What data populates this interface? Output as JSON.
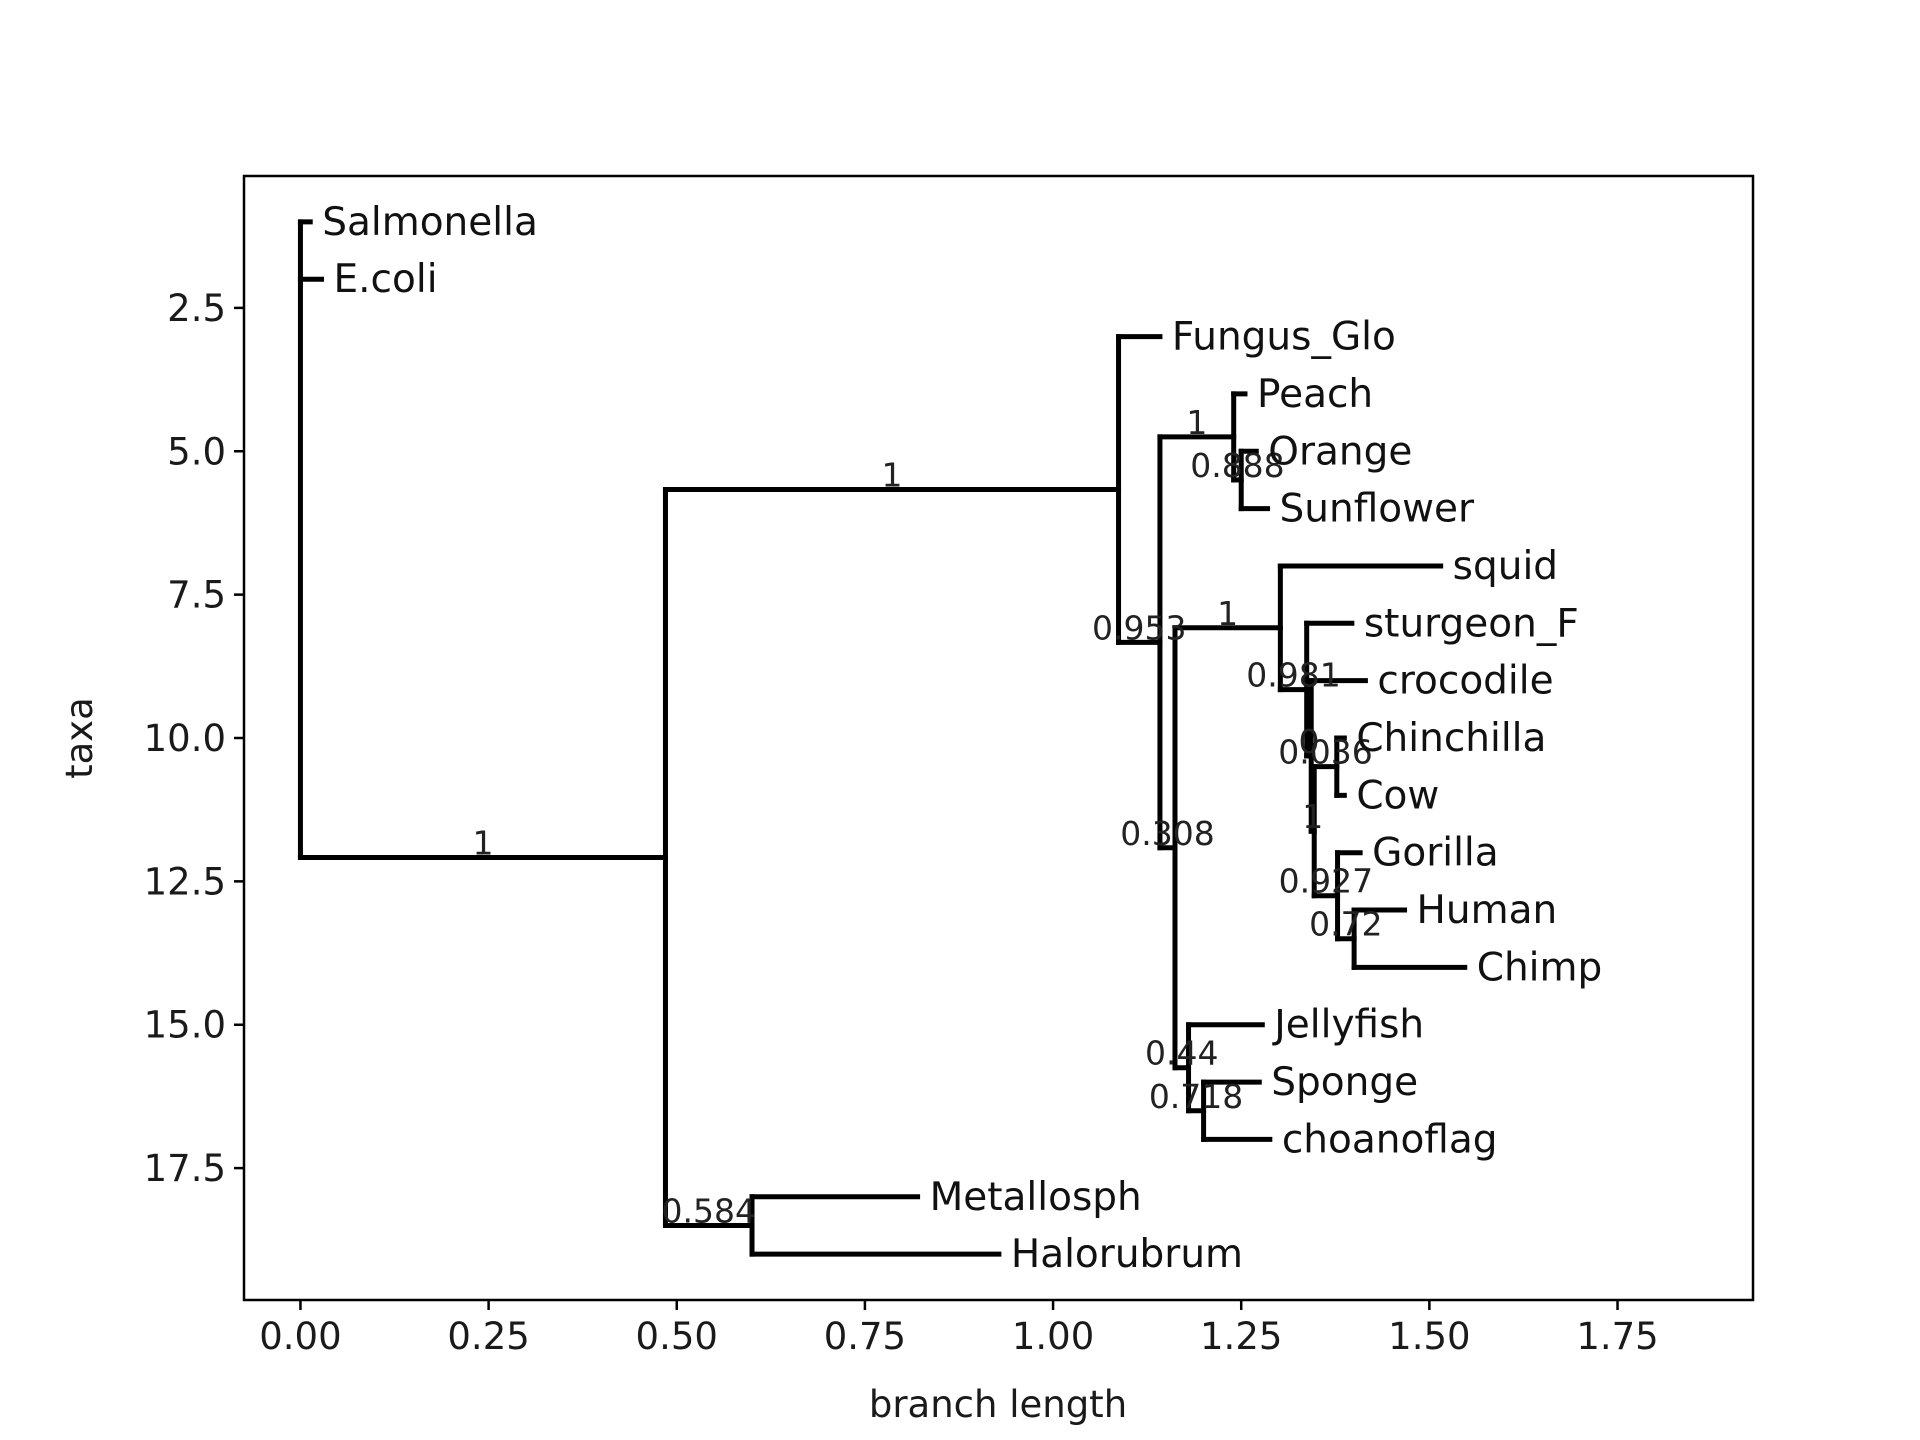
{
  "chart_data": {
    "type": "tree",
    "xlabel": "branch length",
    "ylabel": "taxa",
    "xlim": [
      -0.075,
      1.93
    ],
    "ylim": [
      19.8,
      0.2
    ],
    "x_ticks": [
      {
        "value": 0.0,
        "label": "0.00"
      },
      {
        "value": 0.25,
        "label": "0.25"
      },
      {
        "value": 0.5,
        "label": "0.50"
      },
      {
        "value": 0.75,
        "label": "0.75"
      },
      {
        "value": 1.0,
        "label": "1.00"
      },
      {
        "value": 1.25,
        "label": "1.25"
      },
      {
        "value": 1.5,
        "label": "1.50"
      },
      {
        "value": 1.75,
        "label": "1.75"
      }
    ],
    "y_ticks": [
      {
        "value": 2.5,
        "label": "2.5"
      },
      {
        "value": 5.0,
        "label": "5.0"
      },
      {
        "value": 7.5,
        "label": "7.5"
      },
      {
        "value": 10.0,
        "label": "10.0"
      },
      {
        "value": 12.5,
        "label": "12.5"
      },
      {
        "value": 15.0,
        "label": "15.0"
      },
      {
        "value": 17.5,
        "label": "17.5"
      }
    ],
    "leaves": [
      {
        "name": "Salmonella",
        "x": 0.013,
        "y": 1
      },
      {
        "name": "E.coli",
        "x": 0.028,
        "y": 2
      },
      {
        "name": "Fungus_Glo",
        "x": 1.142,
        "y": 3
      },
      {
        "name": "Peach",
        "x": 1.255,
        "y": 4
      },
      {
        "name": "Orange",
        "x": 1.27,
        "y": 5
      },
      {
        "name": "Sunflower",
        "x": 1.285,
        "y": 6
      },
      {
        "name": "squid",
        "x": 1.515,
        "y": 7
      },
      {
        "name": "sturgeon_F",
        "x": 1.397,
        "y": 8
      },
      {
        "name": "crocodile",
        "x": 1.415,
        "y": 9
      },
      {
        "name": "Chinchilla",
        "x": 1.387,
        "y": 10
      },
      {
        "name": "Cow",
        "x": 1.387,
        "y": 11
      },
      {
        "name": "Gorilla",
        "x": 1.408,
        "y": 12
      },
      {
        "name": "Human",
        "x": 1.467,
        "y": 13
      },
      {
        "name": "Chimp",
        "x": 1.547,
        "y": 14
      },
      {
        "name": "Jellyfish",
        "x": 1.278,
        "y": 15
      },
      {
        "name": "Sponge",
        "x": 1.274,
        "y": 16
      },
      {
        "name": "choanoflag",
        "x": 1.288,
        "y": 17
      },
      {
        "name": "Metallosph",
        "x": 0.82,
        "y": 18
      },
      {
        "name": "Halorubrum",
        "x": 0.928,
        "y": 19
      }
    ],
    "nodes": [
      {
        "id": "root",
        "x": 0.0,
        "children": [
          "Salmonella",
          "E.coli",
          "n_big"
        ]
      },
      {
        "id": "n_big",
        "x": 0.485,
        "support": "1",
        "children": [
          "n_euk",
          "n_arch"
        ]
      },
      {
        "id": "n_euk",
        "x": 1.087,
        "support": "1",
        "children": [
          "Fungus_Glo",
          "n_9"
        ]
      },
      {
        "id": "n_9",
        "x": 1.142,
        "support": "0.953",
        "children": [
          "n_pl",
          "n_an"
        ]
      },
      {
        "id": "n_pl",
        "x": 1.24,
        "support": "1",
        "children": [
          "Peach",
          "n_os"
        ]
      },
      {
        "id": "n_os",
        "x": 1.25,
        "support": "0.888",
        "children": [
          "Orange",
          "Sunflower"
        ]
      },
      {
        "id": "n_an",
        "x": 1.162,
        "support": "0.308",
        "children": [
          "n_bil",
          "n_bas"
        ]
      },
      {
        "id": "n_bil",
        "x": 1.302,
        "support": "1",
        "children": [
          "squid",
          "n_ver"
        ]
      },
      {
        "id": "n_ver",
        "x": 1.337,
        "support": "0.981",
        "children": [
          "sturgeon_F",
          "n_amn"
        ]
      },
      {
        "id": "n_amn",
        "x": 1.343,
        "support": "0",
        "children": [
          "crocodile",
          "n_mam"
        ]
      },
      {
        "id": "n_mam",
        "x": 1.347,
        "support": "1",
        "children": [
          "n_cc",
          "n_pri"
        ]
      },
      {
        "id": "n_cc",
        "x": 1.377,
        "support": "0.036",
        "children": [
          "Chinchilla",
          "Cow"
        ]
      },
      {
        "id": "n_pri",
        "x": 1.378,
        "support": "0.927",
        "children": [
          "Gorilla",
          "n_hc"
        ]
      },
      {
        "id": "n_hc",
        "x": 1.4,
        "support": "0.72",
        "children": [
          "Human",
          "Chimp"
        ]
      },
      {
        "id": "n_bas",
        "x": 1.18,
        "support": "0.44",
        "children": [
          "Jellyfish",
          "n_sc"
        ]
      },
      {
        "id": "n_sc",
        "x": 1.2,
        "support": "0.718",
        "children": [
          "Sponge",
          "choanoflag"
        ]
      },
      {
        "id": "n_arch",
        "x": 0.6,
        "support": "0.584",
        "children": [
          "Metallosph",
          "Halorubrum"
        ]
      }
    ]
  }
}
